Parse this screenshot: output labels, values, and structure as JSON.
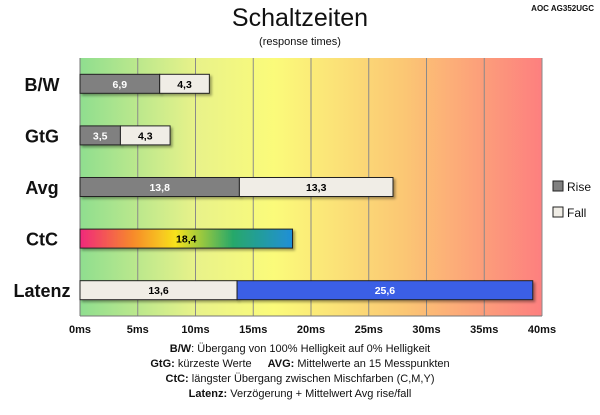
{
  "chart_data": {
    "type": "bar",
    "orientation": "horizontal",
    "stacked": true,
    "title": "Schaltzeiten",
    "subtitle": "(response times)",
    "model": "AOC AG352UGC",
    "categories": [
      "B/W",
      "GtG",
      "Avg",
      "CtC",
      "Latenz"
    ],
    "series": [
      {
        "name": "Rise",
        "values": [
          6.9,
          3.5,
          13.8,
          null,
          null
        ],
        "labels": [
          "6,9",
          "3,5",
          "13,8",
          null,
          null
        ],
        "color": "#808080"
      },
      {
        "name": "Fall",
        "values": [
          4.3,
          4.3,
          13.3,
          null,
          13.6
        ],
        "labels": [
          "4,3",
          "4,3",
          "13,3",
          null,
          "13,6"
        ],
        "color": "#f0ede6"
      },
      {
        "name": "CtC",
        "values": [
          null,
          null,
          null,
          18.4,
          null
        ],
        "labels": [
          null,
          null,
          null,
          "18,4",
          null
        ],
        "color": "gradient-rainbow"
      },
      {
        "name": "Latenz",
        "values": [
          null,
          null,
          null,
          null,
          25.6
        ],
        "labels": [
          null,
          null,
          null,
          null,
          "25,6"
        ],
        "color": "#3b5ee6"
      }
    ],
    "xlim": [
      0,
      40
    ],
    "xticks": [
      "0ms",
      "5ms",
      "10ms",
      "15ms",
      "20ms",
      "25ms",
      "30ms",
      "35ms",
      "40ms"
    ],
    "xtick_values": [
      0,
      5,
      10,
      15,
      20,
      25,
      30,
      35,
      40
    ],
    "background": "gradient green-yellow-red",
    "legend": {
      "position": "right",
      "items": [
        {
          "label": "Rise",
          "color": "#808080"
        },
        {
          "label": "Fall",
          "color": "#f0ede6"
        }
      ]
    },
    "grid": true
  },
  "footnotes": {
    "line1": {
      "key": "B/W",
      "text": ":  Übergang von 100% Helligkeit auf 0% Helligkeit"
    },
    "line2a": {
      "key": "GtG:",
      "text": " kürzeste  Werte"
    },
    "line2b": {
      "key": "AVG:",
      "text": " Mittelwerte  an 15 Messpunkten"
    },
    "line3": {
      "key": "CtC:",
      "text": " längster Übergang  zwischen Mischfarben  (C,M,Y)"
    },
    "line4": {
      "key": "Latenz:",
      "text": " Verzögerung  + Mittelwert  Avg rise/fall"
    }
  }
}
